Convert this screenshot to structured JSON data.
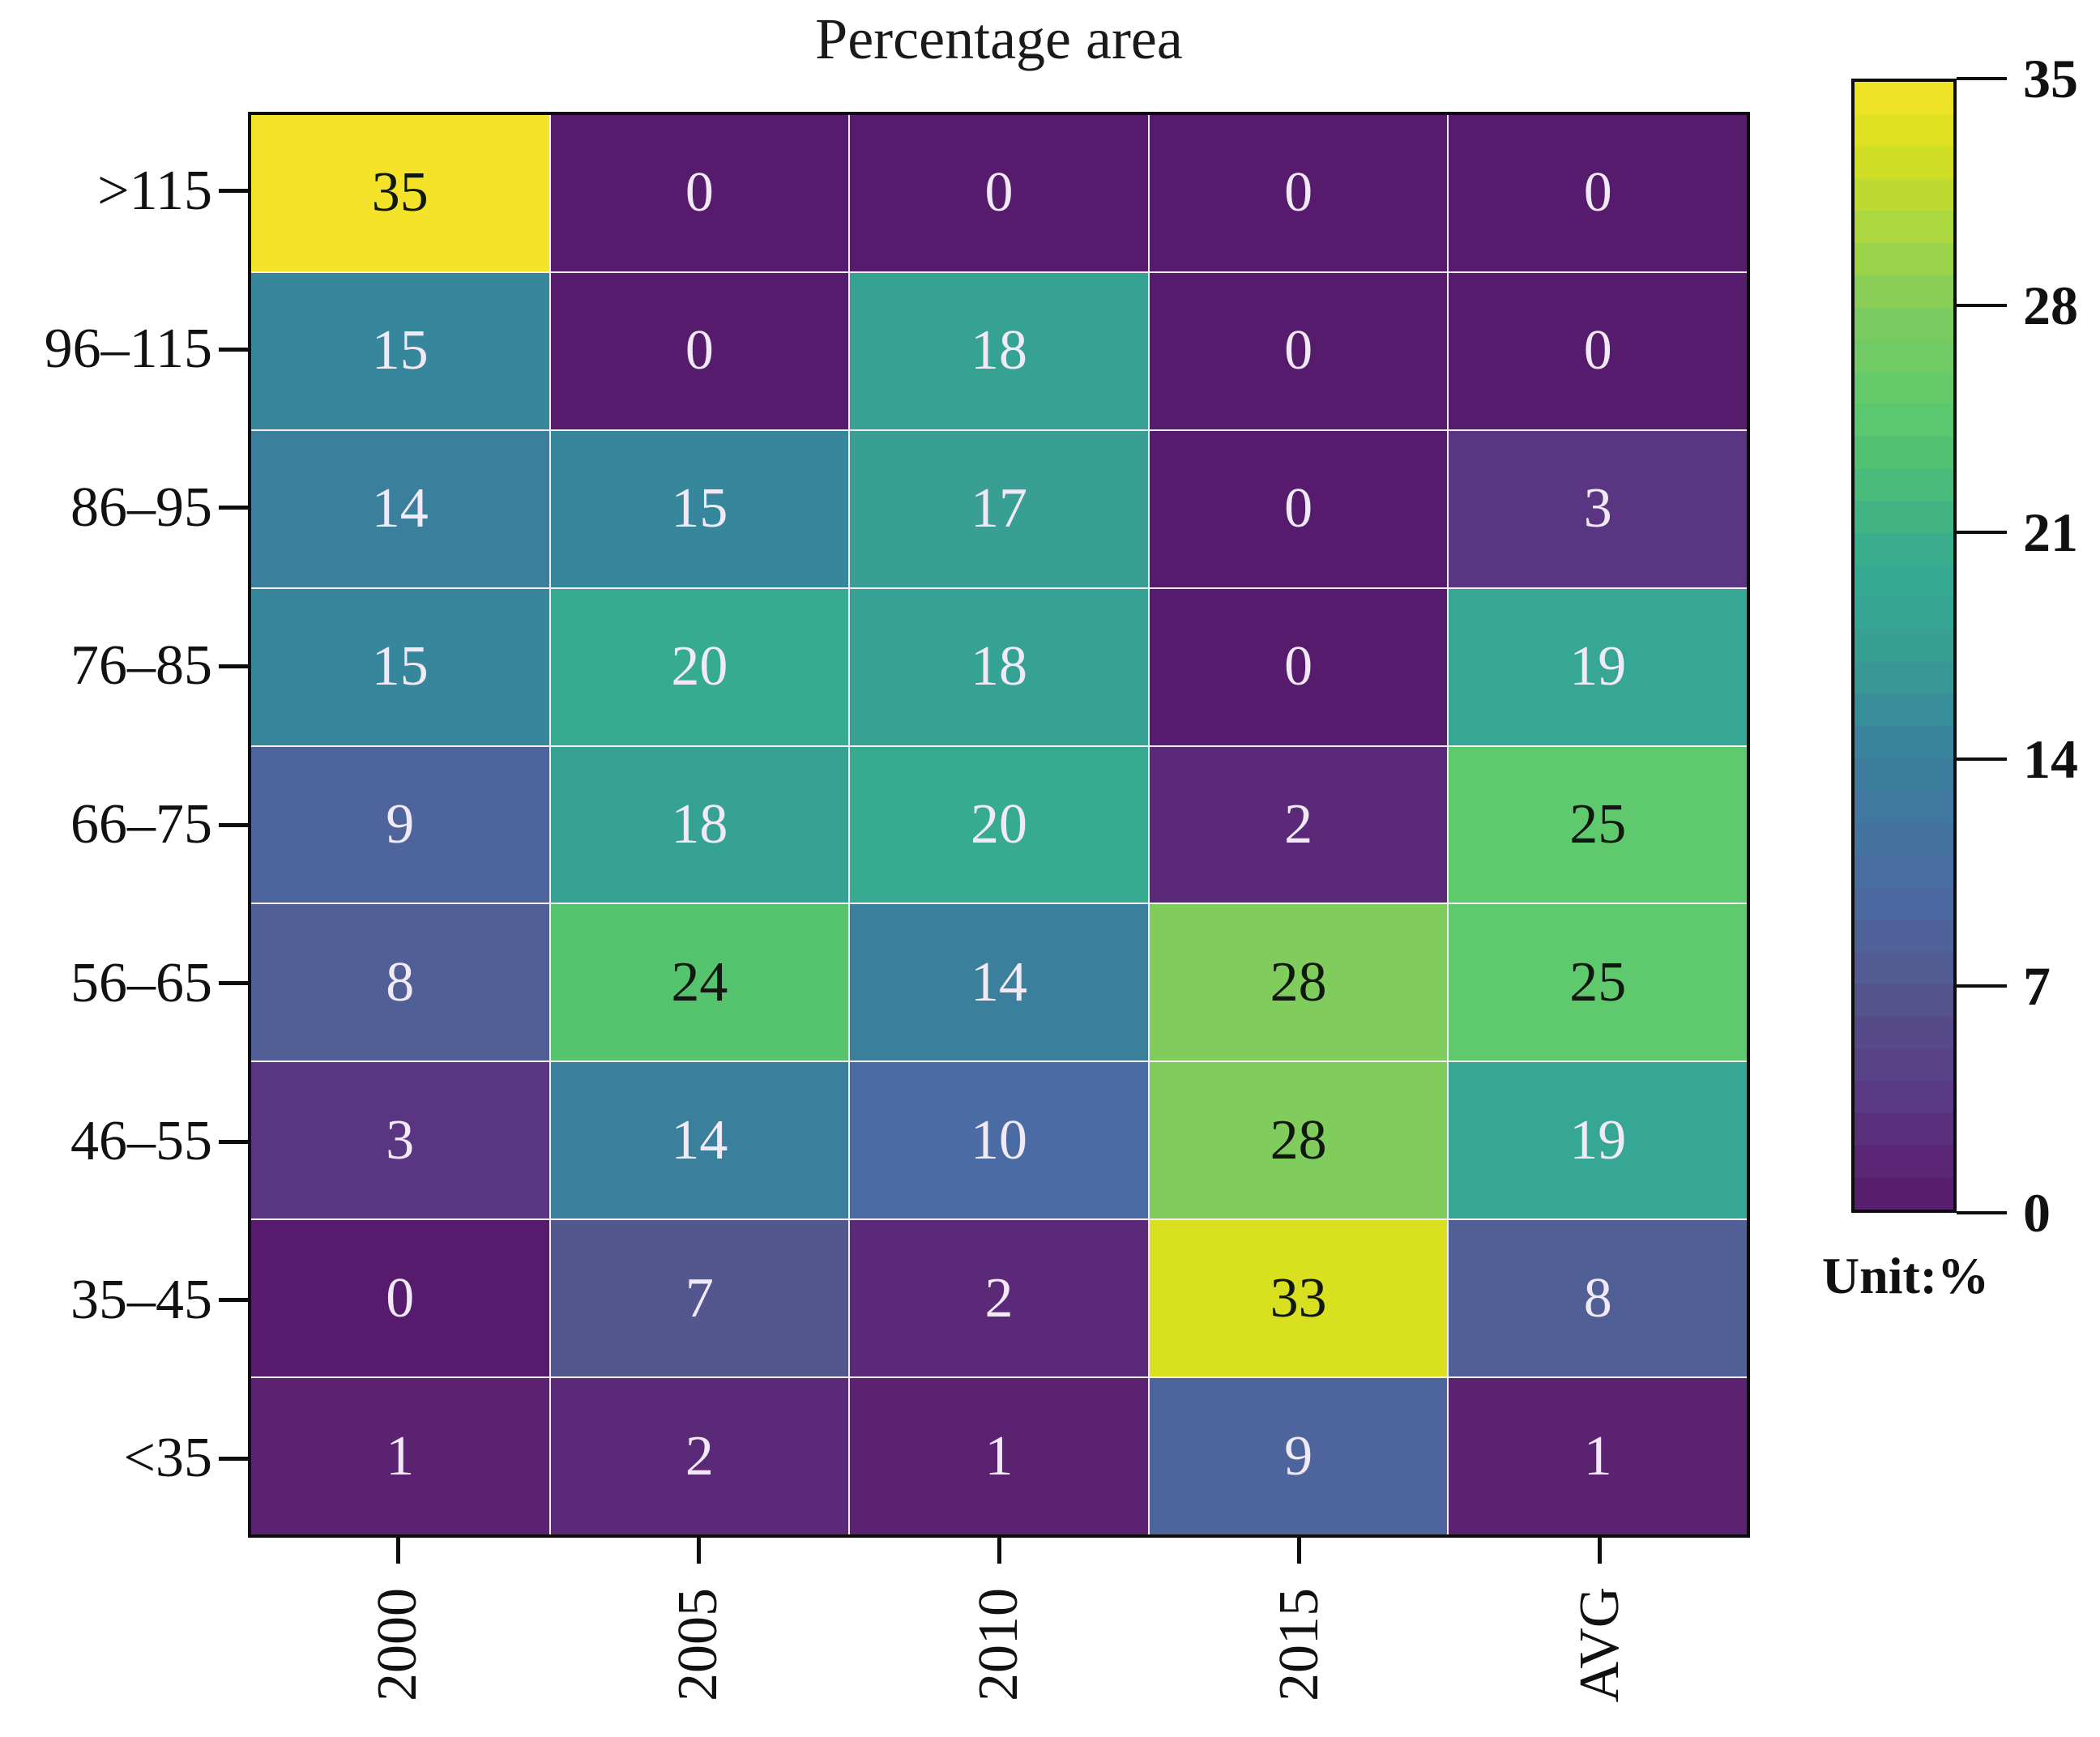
{
  "title": "Percentage area",
  "chart_data": {
    "type": "heatmap",
    "title": "Percentage area",
    "columns": [
      "2000",
      "2005",
      "2010",
      "2015",
      "AVG"
    ],
    "rows": [
      ">115",
      "96–115",
      "86–95",
      "76–85",
      "66–75",
      "56–65",
      "46–55",
      "35–45",
      "<35"
    ],
    "values": [
      [
        35,
        0,
        0,
        0,
        0
      ],
      [
        15,
        0,
        18,
        0,
        0
      ],
      [
        14,
        15,
        17,
        0,
        3
      ],
      [
        15,
        20,
        18,
        0,
        19
      ],
      [
        9,
        18,
        20,
        2,
        25
      ],
      [
        8,
        24,
        14,
        28,
        25
      ],
      [
        3,
        14,
        10,
        28,
        19
      ],
      [
        0,
        7,
        2,
        33,
        8
      ],
      [
        1,
        2,
        1,
        9,
        1
      ]
    ],
    "colorbar": {
      "ticks": [
        35,
        28,
        21,
        14,
        7,
        0
      ],
      "min": 0,
      "max": 35,
      "unit_label": "Unit:%",
      "position": "right"
    },
    "colormap": "viridis",
    "value_colors": {
      "0": "#571b6d",
      "1": "#5b2271",
      "2": "#5a2a78",
      "3": "#5a3582",
      "7": "#53578d",
      "8": "#515f97",
      "9": "#4e649c",
      "10": "#4a6ba3",
      "14": "#3a7f9c",
      "15": "#37879c",
      "17": "#399e93",
      "18": "#35a293",
      "19": "#36a795",
      "20": "#36ab90",
      "24": "#56c46e",
      "25": "#5fc96d",
      "28": "#80cd5d",
      "33": "#d9e01f",
      "35": "#f5e32a"
    }
  }
}
